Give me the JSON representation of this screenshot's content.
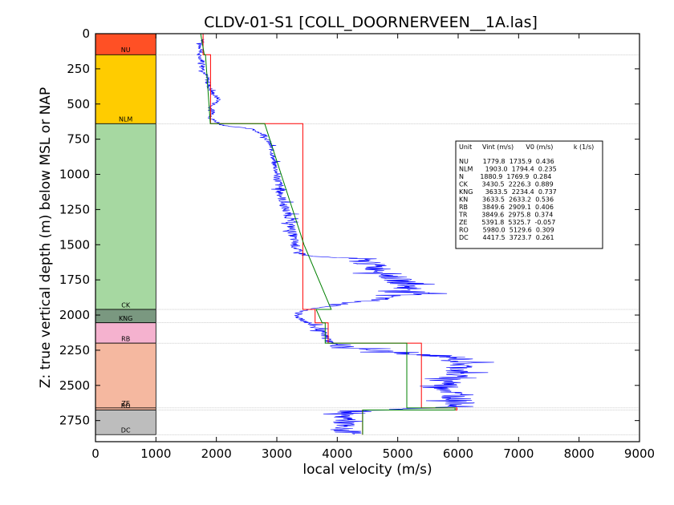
{
  "chart_data": {
    "type": "line",
    "title": "CLDV-01-S1 [COLL_DOORNERVEEN__1A.las]",
    "xlabel": "local velocity (m/s)",
    "ylabel": "Z: true vertical depth (m) below MSL or NAP",
    "xlim": [
      0,
      9000
    ],
    "ylim": [
      2900,
      0
    ],
    "x_ticks": [
      "0",
      "1000",
      "2000",
      "3000",
      "4000",
      "5000",
      "6000",
      "7000",
      "8000",
      "9000"
    ],
    "y_ticks": [
      "0",
      "250",
      "500",
      "750",
      "1000",
      "1250",
      "1500",
      "1750",
      "2000",
      "2250",
      "2500",
      "2750"
    ],
    "x_tick_values": [
      0,
      1000,
      2000,
      3000,
      4000,
      5000,
      6000,
      7000,
      8000,
      9000
    ],
    "y_tick_values": [
      0,
      250,
      500,
      750,
      1000,
      1250,
      1500,
      1750,
      2000,
      2250,
      2500,
      2750
    ],
    "units": [
      {
        "name": "NU",
        "top": 0,
        "base": 150,
        "color": "#ff5025"
      },
      {
        "name": "NLM",
        "top": 150,
        "base": 640,
        "color": "#ffcc00"
      },
      {
        "name": "CK",
        "top": 640,
        "base": 1960,
        "color": "#a6d8a1"
      },
      {
        "name": "KNG",
        "top": 1960,
        "base": 2055,
        "color": "#7a9880"
      },
      {
        "name": "RB",
        "top": 2055,
        "base": 2200,
        "color": "#f5b2cf"
      },
      {
        "name": "ZE",
        "top": 2200,
        "base": 2660,
        "color": "#f5b8a0"
      },
      {
        "name": "RO",
        "top": 2660,
        "base": 2675,
        "color": "#f5b8a0"
      },
      {
        "name": "DC",
        "top": 2675,
        "base": 2850,
        "color": "#bdbdbd"
      }
    ],
    "unit_labels": [
      {
        "text": "NU",
        "depth": 130
      },
      {
        "text": "NLM",
        "depth": 625
      },
      {
        "text": "CK",
        "depth": 1945
      },
      {
        "text": "KNG",
        "depth": 2040
      },
      {
        "text": "RB",
        "depth": 2185
      },
      {
        "text": "ZE",
        "depth": 2645
      },
      {
        "text": "RO",
        "depth": 2660
      },
      {
        "text": "DC",
        "depth": 2835
      }
    ],
    "boundary_depths": [
      150,
      640,
      1960,
      2055,
      2200,
      2660,
      2675,
      2850
    ],
    "series": [
      {
        "name": "",
        "color": "#0000ff",
        "style": "noisy",
        "points": [
          [
            1800,
            40
          ],
          [
            1720,
            80
          ],
          [
            1760,
            120
          ],
          [
            1700,
            150
          ],
          [
            1780,
            200
          ],
          [
            1790,
            260
          ],
          [
            1850,
            320
          ],
          [
            1880,
            380
          ],
          [
            1950,
            430
          ],
          [
            2050,
            470
          ],
          [
            1900,
            520
          ],
          [
            1950,
            560
          ],
          [
            1900,
            600
          ],
          [
            1980,
            620
          ],
          [
            2100,
            650
          ],
          [
            2600,
            680
          ],
          [
            2800,
            720
          ],
          [
            2900,
            800
          ],
          [
            2950,
            900
          ],
          [
            3000,
            1000
          ],
          [
            3050,
            1100
          ],
          [
            3100,
            1200
          ],
          [
            3200,
            1300
          ],
          [
            3250,
            1400
          ],
          [
            3300,
            1500
          ],
          [
            3350,
            1550
          ],
          [
            3500,
            1580
          ],
          [
            4300,
            1600
          ],
          [
            4600,
            1650
          ],
          [
            4800,
            1700
          ],
          [
            5000,
            1750
          ],
          [
            5200,
            1800
          ],
          [
            5300,
            1850
          ],
          [
            4500,
            1900
          ],
          [
            4000,
            1930
          ],
          [
            3500,
            1960
          ],
          [
            3300,
            2000
          ],
          [
            3500,
            2050
          ],
          [
            3700,
            2100
          ],
          [
            3800,
            2150
          ],
          [
            3900,
            2200
          ],
          [
            4200,
            2230
          ],
          [
            4800,
            2260
          ],
          [
            5500,
            2290
          ],
          [
            6000,
            2300
          ],
          [
            6100,
            2350
          ],
          [
            6000,
            2400
          ],
          [
            5900,
            2450
          ],
          [
            5800,
            2500
          ],
          [
            5900,
            2550
          ],
          [
            6000,
            2600
          ],
          [
            6050,
            2650
          ],
          [
            4500,
            2680
          ],
          [
            4000,
            2700
          ],
          [
            4200,
            2750
          ],
          [
            4000,
            2800
          ],
          [
            4300,
            2850
          ]
        ]
      },
      {
        "name": "",
        "color": "#ff0000",
        "style": "step",
        "points": [
          [
            1779.8,
            0
          ],
          [
            1779.8,
            150
          ],
          [
            1903.0,
            150
          ],
          [
            1903.0,
            640
          ],
          [
            3430.5,
            640
          ],
          [
            3430.5,
            1960
          ],
          [
            3633.5,
            1960
          ],
          [
            3633.5,
            2055
          ],
          [
            3849.6,
            2055
          ],
          [
            3849.6,
            2200
          ],
          [
            5391.8,
            2200
          ],
          [
            5391.8,
            2660
          ],
          [
            5980.0,
            2660
          ],
          [
            5980.0,
            2675
          ],
          [
            4417.5,
            2675
          ],
          [
            4417.5,
            2850
          ]
        ]
      },
      {
        "name": "",
        "color": "#008000",
        "style": "linear",
        "points": [
          [
            1740,
            0
          ],
          [
            1800,
            150
          ],
          [
            1820,
            150
          ],
          [
            1900,
            640
          ],
          [
            2800,
            640
          ],
          [
            3450,
            1500
          ],
          [
            3900,
            1960
          ],
          [
            3650,
            1960
          ],
          [
            3750,
            2055
          ],
          [
            3800,
            2055
          ],
          [
            3800,
            2200
          ],
          [
            5150,
            2200
          ],
          [
            5150,
            2660
          ],
          [
            5950,
            2660
          ],
          [
            5950,
            2675
          ],
          [
            4420,
            2675
          ],
          [
            4420,
            2850
          ]
        ]
      }
    ],
    "table": {
      "header": "Unit     Vint (m/s)      V0 (m/s)          k (1/s)",
      "rows": [
        "NU       1779.8  1735.9  0.436",
        "NLM      1903.0  1794.4  0.235",
        "N        1880.9  1769.9  0.284",
        "CK       3430.5  2226.3  0.889",
        "KNG      3633.5  2234.4  0.737",
        "KN       3633.5  2633.2  0.536",
        "RB       3849.6  2909.1  0.406",
        "TR       3849.6  2975.8  0.374",
        "ZE       5391.8  5325.7  -0.057",
        "RO       5980.0  5129.6  0.309",
        "DC       4417.5  3723.7  0.261"
      ]
    }
  }
}
